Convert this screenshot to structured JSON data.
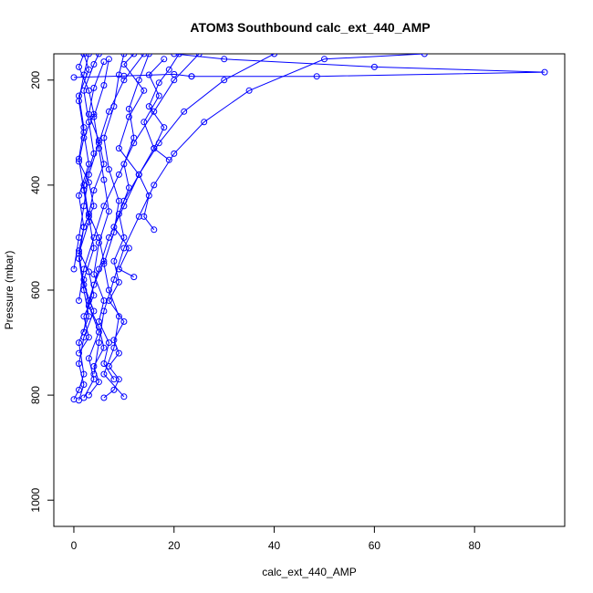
{
  "chart_data": {
    "type": "line",
    "title": "ATOM3 Southbound calc_ext_440_AMP",
    "xlabel": "calc_ext_440_AMP",
    "ylabel": "Pressure (mbar)",
    "xlim": [
      -4,
      98
    ],
    "ylim": [
      1050,
      150
    ],
    "y_reversed": true,
    "x_ticks": [
      0,
      20,
      40,
      60,
      80
    ],
    "y_ticks": [
      200,
      400,
      600,
      800,
      1000
    ],
    "grid": false,
    "legend": "none",
    "marker": "open-circle",
    "series_color": "#0000ff",
    "series": [
      {
        "points": [
          [
            0,
            808
          ],
          [
            1,
            790
          ],
          [
            2,
            760
          ],
          [
            1,
            700
          ],
          [
            3,
            650
          ],
          [
            2,
            600
          ],
          [
            1,
            540
          ],
          [
            2,
            480
          ],
          [
            1,
            420
          ],
          [
            3,
            360
          ],
          [
            2,
            300
          ],
          [
            1,
            240
          ],
          [
            2,
            190
          ],
          [
            3,
            150
          ]
        ]
      },
      {
        "points": [
          [
            1,
            810
          ],
          [
            2,
            780
          ],
          [
            1,
            740
          ],
          [
            2,
            690
          ],
          [
            4,
            640
          ],
          [
            2,
            590
          ],
          [
            1,
            530
          ],
          [
            3,
            470
          ],
          [
            2,
            410
          ],
          [
            1,
            350
          ],
          [
            2,
            290
          ],
          [
            1,
            230
          ],
          [
            3,
            180
          ],
          [
            2,
            150
          ]
        ]
      },
      {
        "points": [
          [
            2,
            805
          ],
          [
            4,
            770
          ],
          [
            3,
            730
          ],
          [
            5,
            680
          ],
          [
            3,
            630
          ],
          [
            2,
            580
          ],
          [
            4,
            520
          ],
          [
            3,
            460
          ],
          [
            2,
            400
          ],
          [
            4,
            340
          ],
          [
            3,
            280
          ],
          [
            2,
            220
          ],
          [
            4,
            170
          ],
          [
            5,
            150
          ]
        ]
      },
      {
        "points": [
          [
            8,
            770
          ],
          [
            6,
            740
          ],
          [
            7,
            700
          ],
          [
            5,
            660
          ],
          [
            6,
            620
          ],
          [
            4,
            570
          ],
          [
            5,
            510
          ],
          [
            7,
            450
          ],
          [
            6,
            390
          ],
          [
            5,
            330
          ],
          [
            4,
            270
          ],
          [
            6,
            210
          ],
          [
            7,
            160
          ]
        ]
      },
      {
        "points": [
          [
            10,
            803
          ],
          [
            6,
            760
          ],
          [
            8,
            710
          ],
          [
            9,
            650
          ],
          [
            7,
            600
          ],
          [
            6,
            550
          ],
          [
            8,
            490
          ],
          [
            9,
            430
          ],
          [
            7,
            370
          ],
          [
            6,
            310
          ],
          [
            8,
            250
          ],
          [
            9,
            190
          ],
          [
            10,
            150
          ]
        ]
      },
      {
        "points": [
          [
            12,
            575
          ],
          [
            9,
            560
          ],
          [
            11,
            520
          ],
          [
            8,
            480
          ],
          [
            10,
            430
          ],
          [
            13,
            380
          ],
          [
            9,
            330
          ],
          [
            11,
            270
          ],
          [
            14,
            220
          ],
          [
            10,
            170
          ],
          [
            12,
            150
          ]
        ]
      },
      {
        "points": [
          [
            16,
            485
          ],
          [
            14,
            460
          ],
          [
            15,
            420
          ],
          [
            13,
            380
          ],
          [
            16,
            330
          ],
          [
            14,
            280
          ],
          [
            17,
            230
          ],
          [
            15,
            190
          ],
          [
            18,
            160
          ]
        ]
      },
      {
        "points": [
          [
            19,
            352
          ],
          [
            16,
            330
          ],
          [
            18,
            290
          ],
          [
            15,
            250
          ],
          [
            17,
            205
          ],
          [
            19,
            180
          ],
          [
            21,
            150
          ]
        ]
      },
      {
        "points": [
          [
            3,
            800
          ],
          [
            5,
            775
          ],
          [
            4,
            745
          ],
          [
            6,
            710
          ],
          [
            5,
            670
          ],
          [
            3,
            630
          ],
          [
            4,
            590
          ],
          [
            6,
            545
          ],
          [
            5,
            500
          ],
          [
            3,
            455
          ],
          [
            4,
            410
          ],
          [
            6,
            360
          ],
          [
            5,
            315
          ],
          [
            3,
            265
          ],
          [
            4,
            215
          ],
          [
            6,
            165
          ]
        ]
      },
      {
        "points": [
          [
            1,
            720
          ],
          [
            3,
            690
          ],
          [
            2,
            650
          ],
          [
            4,
            610
          ],
          [
            3,
            565
          ],
          [
            1,
            525
          ],
          [
            2,
            480
          ],
          [
            4,
            440
          ],
          [
            3,
            395
          ],
          [
            1,
            355
          ],
          [
            2,
            310
          ],
          [
            4,
            265
          ],
          [
            3,
            220
          ],
          [
            1,
            175
          ],
          [
            2,
            150
          ]
        ]
      },
      {
        "points": [
          [
            6,
            805
          ],
          [
            8,
            790
          ],
          [
            9,
            770
          ],
          [
            7,
            745
          ],
          [
            9,
            720
          ],
          [
            8,
            695
          ],
          [
            10,
            660
          ],
          [
            7,
            620
          ],
          [
            9,
            585
          ],
          [
            8,
            545
          ],
          [
            10,
            500
          ],
          [
            9,
            455
          ],
          [
            11,
            405
          ],
          [
            10,
            360
          ],
          [
            12,
            310
          ],
          [
            11,
            255
          ],
          [
            13,
            200
          ],
          [
            15,
            150
          ]
        ]
      },
      {
        "points": [
          [
            23.5,
            193
          ],
          [
            48.5,
            193
          ],
          [
            94,
            185
          ],
          [
            60,
            175
          ],
          [
            30,
            160
          ],
          [
            20,
            150
          ]
        ]
      },
      {
        "points": [
          [
            0,
            195
          ],
          [
            10,
            192
          ],
          [
            20,
            189
          ],
          [
            23.5,
            193
          ]
        ]
      },
      {
        "points": [
          [
            1,
            620
          ],
          [
            2,
            560
          ],
          [
            4,
            500
          ],
          [
            6,
            440
          ],
          [
            9,
            380
          ],
          [
            12,
            320
          ],
          [
            16,
            260
          ],
          [
            20,
            200
          ],
          [
            25,
            150
          ]
        ]
      },
      {
        "points": [
          [
            2,
            680
          ],
          [
            3,
            620
          ],
          [
            5,
            560
          ],
          [
            7,
            500
          ],
          [
            10,
            440
          ],
          [
            13,
            380
          ],
          [
            17,
            320
          ],
          [
            22,
            260
          ],
          [
            30,
            200
          ],
          [
            40,
            150
          ]
        ]
      },
      {
        "points": [
          [
            0,
            560
          ],
          [
            1,
            500
          ],
          [
            2,
            440
          ],
          [
            3,
            380
          ],
          [
            5,
            320
          ],
          [
            7,
            260
          ],
          [
            10,
            200
          ],
          [
            14,
            150
          ]
        ]
      },
      {
        "points": [
          [
            4,
            760
          ],
          [
            5,
            700
          ],
          [
            6,
            640
          ],
          [
            8,
            580
          ],
          [
            10,
            520
          ],
          [
            13,
            460
          ],
          [
            16,
            400
          ],
          [
            20,
            340
          ],
          [
            26,
            280
          ],
          [
            35,
            220
          ],
          [
            50,
            160
          ],
          [
            70,
            150
          ]
        ]
      }
    ]
  }
}
